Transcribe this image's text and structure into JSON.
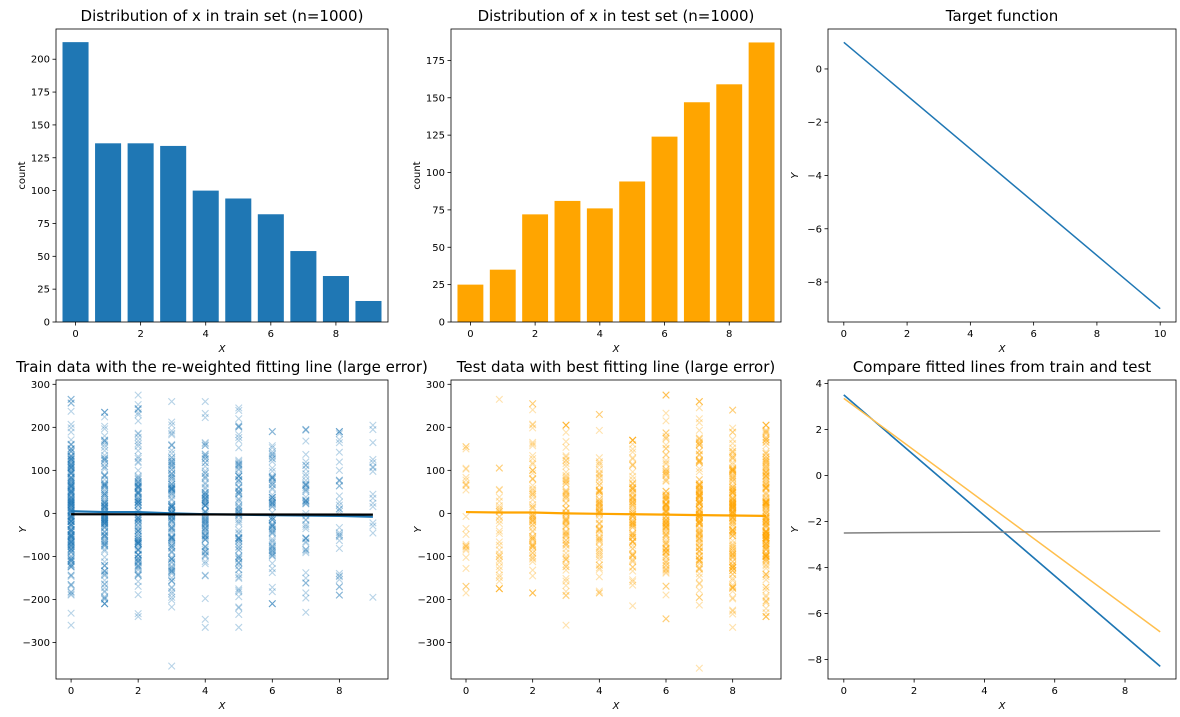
{
  "chart_data": [
    {
      "id": "p1",
      "type": "bar",
      "title": "Distribution of x in train set (n=1000)",
      "xlabel": "X",
      "ylabel": "count",
      "categories": [
        0,
        1,
        2,
        3,
        4,
        5,
        6,
        7,
        8,
        9
      ],
      "values": [
        213,
        136,
        136,
        134,
        100,
        94,
        82,
        54,
        35,
        16
      ],
      "color": "#1f77b4",
      "xlim": [
        -0.6,
        9.6
      ],
      "ylim": [
        0,
        223
      ],
      "xticks": [
        0,
        2,
        4,
        6,
        8
      ],
      "yticks": [
        0,
        25,
        50,
        75,
        100,
        125,
        150,
        175,
        200
      ]
    },
    {
      "id": "p2",
      "type": "bar",
      "title": "Distribution of x in test set (n=1000)",
      "xlabel": "X",
      "ylabel": "count",
      "categories": [
        0,
        1,
        2,
        3,
        4,
        5,
        6,
        7,
        8,
        9
      ],
      "values": [
        25,
        35,
        72,
        81,
        76,
        94,
        124,
        147,
        159,
        187
      ],
      "color": "#ffa500",
      "xlim": [
        -0.6,
        9.6
      ],
      "ylim": [
        0,
        196
      ],
      "xticks": [
        0,
        2,
        4,
        6,
        8
      ],
      "yticks": [
        0,
        25,
        50,
        75,
        100,
        125,
        150,
        175
      ]
    },
    {
      "id": "p3",
      "type": "line",
      "title": "Target function",
      "xlabel": "X",
      "ylabel": "Y",
      "series": [
        {
          "x": [
            0,
            10
          ],
          "y": [
            1,
            -9
          ],
          "color": "#1f77b4"
        }
      ],
      "xlim": [
        -0.5,
        10.5
      ],
      "ylim": [
        -9.5,
        1.5
      ],
      "xticks": [
        0,
        2,
        4,
        6,
        8,
        10
      ],
      "yticks": [
        -8,
        -6,
        -4,
        -2,
        0
      ]
    },
    {
      "id": "p4",
      "type": "scatter",
      "title": "Train data with the re-weighted fitting line (large error)",
      "xlabel": "X",
      "ylabel": "Y",
      "marker": "x",
      "scatter_color": "#1f77b4",
      "points_by_x": [
        {
          "x": 0,
          "count": 213,
          "min": -260,
          "max": 265
        },
        {
          "x": 1,
          "count": 136,
          "min": -210,
          "max": 235
        },
        {
          "x": 2,
          "count": 136,
          "min": -240,
          "max": 275
        },
        {
          "x": 3,
          "count": 134,
          "min": -355,
          "max": 260
        },
        {
          "x": 4,
          "count": 100,
          "min": -265,
          "max": 260
        },
        {
          "x": 5,
          "count": 94,
          "min": -265,
          "max": 245
        },
        {
          "x": 6,
          "count": 82,
          "min": -210,
          "max": 190
        },
        {
          "x": 7,
          "count": 54,
          "min": -230,
          "max": 195
        },
        {
          "x": 8,
          "count": 35,
          "min": -190,
          "max": 190
        },
        {
          "x": 9,
          "count": 16,
          "min": -195,
          "max": 205
        }
      ],
      "series": [
        {
          "x": [
            0,
            1,
            2,
            3,
            4,
            5,
            6,
            7,
            8,
            9
          ],
          "y": [
            5,
            3,
            3,
            0,
            -2,
            -3,
            -4,
            -5,
            -6,
            -8
          ],
          "color": "#1f77b4"
        },
        {
          "x": [
            0,
            9
          ],
          "y": [
            -2,
            -3
          ],
          "color": "#000000"
        }
      ],
      "xlim": [
        -0.45,
        9.45
      ],
      "ylim": [
        -385,
        310
      ],
      "xticks": [
        0,
        2,
        4,
        6,
        8
      ],
      "yticks": [
        -300,
        -200,
        -100,
        0,
        100,
        200,
        300
      ]
    },
    {
      "id": "p5",
      "type": "scatter",
      "title": "Test data with best fitting line (large error)",
      "xlabel": "X",
      "ylabel": "Y",
      "marker": "x",
      "scatter_color": "#ffa500",
      "points_by_x": [
        {
          "x": 0,
          "count": 25,
          "min": -185,
          "max": 155
        },
        {
          "x": 1,
          "count": 35,
          "min": -175,
          "max": 265
        },
        {
          "x": 2,
          "count": 72,
          "min": -185,
          "max": 255
        },
        {
          "x": 3,
          "count": 81,
          "min": -260,
          "max": 205
        },
        {
          "x": 4,
          "count": 76,
          "min": -185,
          "max": 230
        },
        {
          "x": 5,
          "count": 94,
          "min": -215,
          "max": 170
        },
        {
          "x": 6,
          "count": 124,
          "min": -245,
          "max": 275
        },
        {
          "x": 7,
          "count": 147,
          "min": -360,
          "max": 260
        },
        {
          "x": 8,
          "count": 159,
          "min": -265,
          "max": 240
        },
        {
          "x": 9,
          "count": 187,
          "min": -240,
          "max": 205
        }
      ],
      "series": [
        {
          "x": [
            0,
            1,
            2,
            3,
            4,
            5,
            6,
            7,
            8,
            9
          ],
          "y": [
            3,
            2,
            2,
            0,
            -1,
            -2,
            -3,
            -4,
            -5,
            -6
          ],
          "color": "#ffa500"
        }
      ],
      "xlim": [
        -0.45,
        9.45
      ],
      "ylim": [
        -385,
        310
      ],
      "xticks": [
        0,
        2,
        4,
        6,
        8
      ],
      "yticks": [
        -300,
        -200,
        -100,
        0,
        100,
        200,
        300
      ]
    },
    {
      "id": "p6",
      "type": "line",
      "title": "Compare fitted lines from train and test",
      "xlabel": "X",
      "ylabel": "Y",
      "series": [
        {
          "x": [
            0,
            9
          ],
          "y": [
            3.5,
            -8.3
          ],
          "color": "#1f77b4"
        },
        {
          "x": [
            0,
            9
          ],
          "y": [
            3.5,
            -8.3
          ],
          "color": "#1f77b4"
        },
        {
          "x": [
            0,
            9
          ],
          "y": [
            3.35,
            -6.8
          ],
          "color": "#ffbf4d"
        },
        {
          "x": [
            0,
            9
          ],
          "y": [
            -2.5,
            -2.42
          ],
          "color": "#808080"
        }
      ],
      "xlim": [
        -0.45,
        9.45
      ],
      "ylim": [
        -8.85,
        4.15
      ],
      "xticks": [
        0,
        2,
        4,
        6,
        8
      ],
      "yticks": [
        -8,
        -6,
        -4,
        -2,
        0,
        2,
        4
      ]
    }
  ]
}
